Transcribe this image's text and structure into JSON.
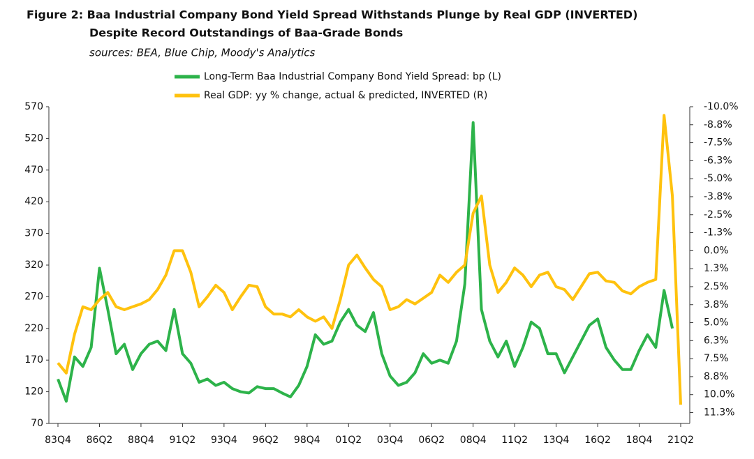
{
  "chart_data": {
    "type": "line",
    "title": "Figure 2: Baa Industrial Company Bond Yield Spread Withstands Plunge by Real GDP (INVERTED)",
    "title_line2": "Despite Record Outstandings of  Baa-Grade Bonds",
    "source": "sources: BEA, Blue Chip, Moody's Analytics",
    "categories": [
      "83Q4",
      null,
      null,
      null,
      null,
      "86Q2",
      null,
      null,
      null,
      null,
      "88Q4",
      null,
      null,
      null,
      null,
      "91Q2",
      null,
      null,
      null,
      null,
      "93Q4",
      null,
      null,
      null,
      null,
      "96Q2",
      null,
      null,
      null,
      null,
      "98Q4",
      null,
      null,
      null,
      null,
      "01Q2",
      null,
      null,
      null,
      null,
      "03Q4",
      null,
      null,
      null,
      null,
      "06Q2",
      null,
      null,
      null,
      null,
      "08Q4",
      null,
      null,
      null,
      null,
      "11Q2",
      null,
      null,
      null,
      null,
      "13Q4",
      null,
      null,
      null,
      null,
      "16Q2",
      null,
      null,
      null,
      null,
      "18Q4",
      null,
      null,
      null,
      null,
      "21Q2"
    ],
    "series": [
      {
        "name": "Long-Term Baa Industrial Company Bond Yield Spread: bp (L)",
        "color": "#2db34a",
        "values": [
          140,
          105,
          175,
          160,
          190,
          315,
          250,
          180,
          195,
          155,
          180,
          195,
          200,
          185,
          250,
          180,
          165,
          135,
          140,
          130,
          135,
          125,
          120,
          118,
          128,
          125,
          125,
          118,
          112,
          130,
          160,
          210,
          195,
          200,
          230,
          250,
          225,
          215,
          245,
          180,
          145,
          130,
          135,
          150,
          180,
          165,
          170,
          165,
          200,
          290,
          545,
          250,
          200,
          175,
          200,
          160,
          190,
          230,
          220,
          180,
          180,
          150,
          175,
          200,
          225,
          235,
          190,
          170,
          155,
          155,
          185,
          210,
          190,
          280,
          220,
          null
        ]
      },
      {
        "name": "Real GDP: yy % change, actual & predicted, INVERTED (R)",
        "color": "#ffc20e",
        "axis": "y2",
        "values": [
          7.8,
          8.5,
          5.8,
          3.9,
          4.1,
          3.4,
          2.9,
          3.9,
          4.1,
          3.9,
          3.7,
          3.4,
          2.7,
          1.7,
          0.0,
          0.0,
          1.5,
          3.9,
          3.2,
          2.4,
          2.9,
          4.1,
          3.2,
          2.4,
          2.5,
          3.9,
          4.4,
          4.4,
          4.6,
          4.1,
          4.6,
          4.9,
          4.6,
          5.4,
          3.4,
          1.0,
          0.3,
          1.2,
          2.0,
          2.5,
          4.1,
          3.9,
          3.4,
          3.7,
          3.3,
          2.9,
          1.7,
          2.2,
          1.5,
          1.0,
          -2.6,
          -3.8,
          1.0,
          2.9,
          2.2,
          1.2,
          1.7,
          2.5,
          1.7,
          1.5,
          2.5,
          2.7,
          3.4,
          2.5,
          1.6,
          1.5,
          2.1,
          2.2,
          2.8,
          3.0,
          2.5,
          2.2,
          2.0,
          -9.4,
          -3.8,
          10.7
        ]
      }
    ],
    "ylim": [
      70,
      570
    ],
    "yticks": [
      70,
      120,
      170,
      220,
      270,
      320,
      370,
      420,
      470,
      520,
      570
    ],
    "y2lim": [
      -10,
      12
    ],
    "y2_inverted": true,
    "y2ticks": [
      {
        "value": -10,
        "label": "-10.0%"
      },
      {
        "value": -8.75,
        "label": "-8.8%"
      },
      {
        "value": -7.5,
        "label": "-7.5%"
      },
      {
        "value": -6.25,
        "label": "-6.3%"
      },
      {
        "value": -5,
        "label": "-5.0%"
      },
      {
        "value": -3.75,
        "label": "-3.8%"
      },
      {
        "value": -2.5,
        "label": "-2.5%"
      },
      {
        "value": -1.25,
        "label": "-1.3%"
      },
      {
        "value": 0,
        "label": "0.0%"
      },
      {
        "value": 1.25,
        "label": "1.3%"
      },
      {
        "value": 2.5,
        "label": "2.5%"
      },
      {
        "value": 3.75,
        "label": "3.8%"
      },
      {
        "value": 5,
        "label": "5.0%"
      },
      {
        "value": 6.25,
        "label": "6.3%"
      },
      {
        "value": 7.5,
        "label": "7.5%"
      },
      {
        "value": 8.75,
        "label": "8.8%"
      },
      {
        "value": 10,
        "label": "10.0%"
      },
      {
        "value": 11.25,
        "label": "11.3%"
      }
    ],
    "grid": false
  }
}
